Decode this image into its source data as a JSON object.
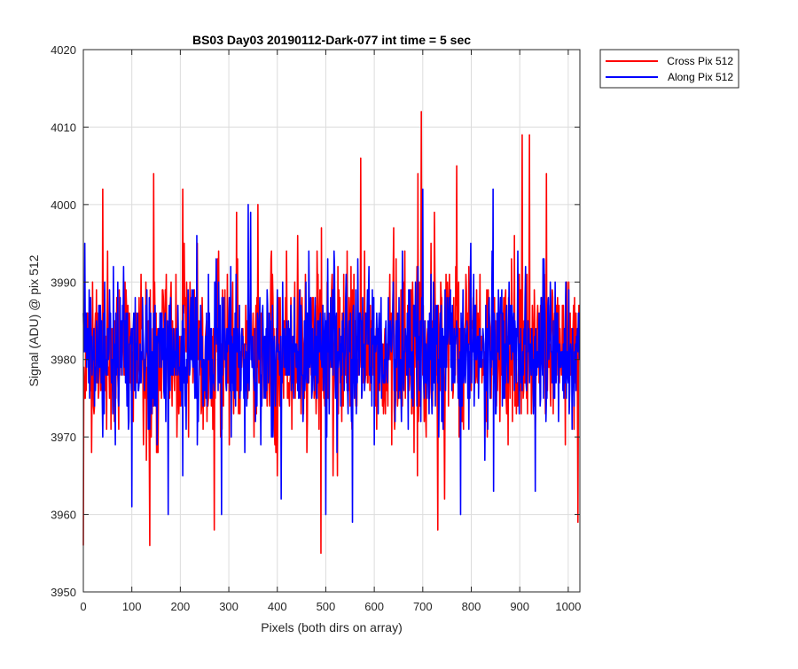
{
  "chart_data": {
    "type": "line",
    "title": "BS03 Day03 20190112-Dark-077 int time = 5 sec",
    "xlabel": "Pixels (both dirs on array)",
    "ylabel": "Signal (ADU) @ pix 512",
    "xlim": [
      0,
      1024
    ],
    "ylim": [
      3950,
      4020
    ],
    "xticks": [
      0,
      100,
      200,
      300,
      400,
      500,
      600,
      700,
      800,
      900,
      1000
    ],
    "yticks": [
      3950,
      3960,
      3970,
      3980,
      3990,
      4000,
      4010,
      4020
    ],
    "grid": true,
    "legend_position": "outside top-right",
    "series": [
      {
        "name": "Cross Pix 512",
        "color": "#ff0000",
        "mean": 3981,
        "noise_std": 5.5,
        "num_points": 1024,
        "highlights": [
          {
            "x": 0,
            "y": 3956
          },
          {
            "x": 40,
            "y": 4002
          },
          {
            "x": 137,
            "y": 3956
          },
          {
            "x": 145,
            "y": 4004
          },
          {
            "x": 205,
            "y": 4002
          },
          {
            "x": 270,
            "y": 3958
          },
          {
            "x": 360,
            "y": 4000
          },
          {
            "x": 400,
            "y": 3965
          },
          {
            "x": 490,
            "y": 3955
          },
          {
            "x": 572,
            "y": 4006
          },
          {
            "x": 690,
            "y": 4004
          },
          {
            "x": 697,
            "y": 4012
          },
          {
            "x": 731,
            "y": 3958
          },
          {
            "x": 770,
            "y": 4005
          },
          {
            "x": 905,
            "y": 4009
          },
          {
            "x": 920,
            "y": 4009
          },
          {
            "x": 955,
            "y": 4004
          },
          {
            "x": 1020,
            "y": 3959
          }
        ]
      },
      {
        "name": "Along Pix 512",
        "color": "#0000ff",
        "mean": 3981,
        "noise_std": 5,
        "num_points": 1024,
        "highlights": [
          {
            "x": 3,
            "y": 3995
          },
          {
            "x": 100,
            "y": 3961
          },
          {
            "x": 175,
            "y": 3960
          },
          {
            "x": 285,
            "y": 3960
          },
          {
            "x": 340,
            "y": 4000
          },
          {
            "x": 408,
            "y": 3962
          },
          {
            "x": 500,
            "y": 3960
          },
          {
            "x": 555,
            "y": 3959
          },
          {
            "x": 700,
            "y": 4002
          },
          {
            "x": 778,
            "y": 3960
          },
          {
            "x": 845,
            "y": 4002
          },
          {
            "x": 932,
            "y": 3963
          },
          {
            "x": 1002,
            "y": 3973
          }
        ]
      }
    ]
  }
}
